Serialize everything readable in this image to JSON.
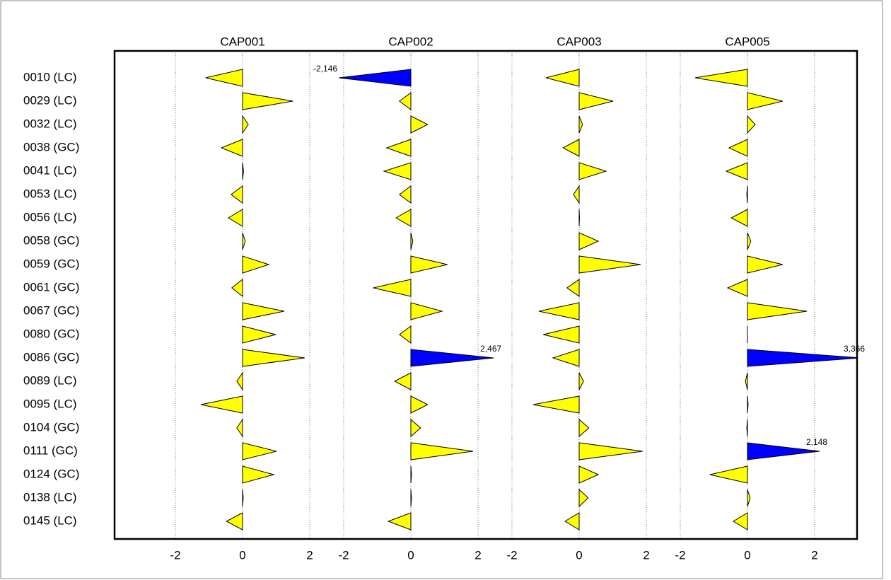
{
  "chart_data": {
    "type": "bar",
    "categories": [
      "0010 (LC)",
      "0029 (LC)",
      "0032 (LC)",
      "0038 (GC)",
      "0041 (LC)",
      "0053 (LC)",
      "0056 (LC)",
      "0058 (GC)",
      "0059 (GC)",
      "0061 (GC)",
      "0067 (GC)",
      "0080 (GC)",
      "0086 (GC)",
      "0089 (LC)",
      "0095 (LC)",
      "0104 (GC)",
      "0111 (GC)",
      "0124 (GC)",
      "0138 (LC)",
      "0145 (LC)"
    ],
    "series": [
      {
        "name": "CAP001",
        "values": [
          -1.1,
          1.5,
          0.17,
          -0.63,
          0.03,
          -0.34,
          -0.42,
          0.08,
          0.78,
          -0.32,
          1.24,
          0.99,
          1.85,
          -0.17,
          -1.24,
          -0.17,
          1.01,
          0.93,
          0.02,
          -0.48
        ],
        "value_labels": [
          null,
          null,
          null,
          null,
          null,
          null,
          null,
          null,
          null,
          null,
          null,
          null,
          null,
          null,
          null,
          null,
          null,
          null,
          null,
          null
        ]
      },
      {
        "name": "CAP002",
        "values": [
          -2.146,
          -0.34,
          0.5,
          -0.72,
          -0.8,
          -0.34,
          -0.44,
          0.06,
          1.09,
          -1.12,
          0.93,
          -0.34,
          2.467,
          -0.48,
          0.5,
          0.29,
          1.85,
          0.02,
          0.02,
          -0.67
        ],
        "value_labels": [
          "-2,146",
          null,
          null,
          null,
          null,
          null,
          null,
          null,
          null,
          null,
          null,
          null,
          "2,467",
          null,
          null,
          null,
          null,
          null,
          null,
          null
        ]
      },
      {
        "name": "CAP003",
        "values": [
          -0.99,
          1.01,
          0.1,
          -0.48,
          0.8,
          -0.17,
          0.01,
          0.57,
          1.83,
          -0.36,
          -1.2,
          -1.07,
          -0.78,
          0.13,
          -1.37,
          0.29,
          1.89,
          0.57,
          0.27,
          -0.42
        ],
        "value_labels": [
          null,
          null,
          null,
          null,
          null,
          null,
          null,
          null,
          null,
          null,
          null,
          null,
          null,
          null,
          null,
          null,
          null,
          null,
          null,
          null
        ]
      },
      {
        "name": "CAP005",
        "values": [
          -1.56,
          1.05,
          0.23,
          -0.55,
          -0.63,
          -0.02,
          -0.48,
          0.1,
          1.05,
          -0.59,
          1.77,
          0,
          3.366,
          -0.06,
          0.02,
          -0.02,
          2.148,
          -1.12,
          0.08,
          -0.42
        ],
        "value_labels": [
          null,
          null,
          null,
          null,
          null,
          null,
          null,
          null,
          null,
          null,
          null,
          null,
          "3,366",
          null,
          null,
          null,
          "2,148",
          null,
          null,
          null
        ]
      }
    ],
    "xlim": [
      -2.5,
      2.5
    ],
    "xticks": [
      -2,
      0,
      2
    ],
    "grid": true,
    "color": "#ffff00",
    "highlight_color": "#0000ff"
  }
}
